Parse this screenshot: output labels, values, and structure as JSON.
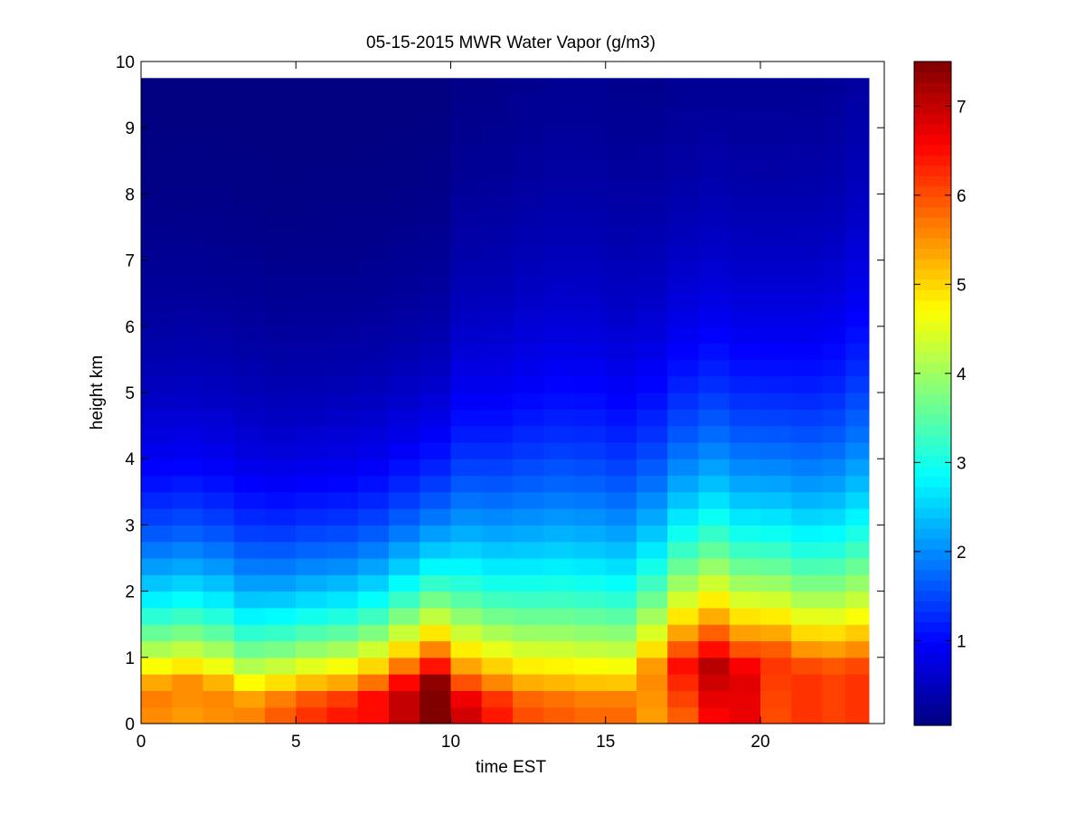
{
  "chart_data": {
    "type": "heatmap",
    "title": "05-15-2015 MWR Water Vapor (g/m3)",
    "xlabel": "time EST",
    "ylabel": "height km",
    "xlim": [
      0,
      24
    ],
    "ylim": [
      0,
      10
    ],
    "x_ticks": [
      0,
      5,
      10,
      15,
      20
    ],
    "y_ticks": [
      0,
      1,
      2,
      3,
      4,
      5,
      6,
      7,
      8,
      9,
      10
    ],
    "colorbar": {
      "colormap": "jet",
      "range": [
        0.05,
        7.5
      ],
      "ticks": [
        1,
        2,
        3,
        4,
        5,
        6,
        7
      ]
    },
    "data_extent": {
      "time_start": 0,
      "time_end": 23.5,
      "height_start": 0,
      "height_end": 9.75
    },
    "grid": false,
    "times": [
      0.5,
      1.5,
      2.5,
      3.5,
      4.5,
      5.5,
      6.5,
      7.5,
      8.5,
      9.5,
      10.5,
      11.5,
      12.5,
      13.5,
      14.5,
      15.5,
      16.5,
      17.5,
      18.5,
      19.5,
      20.5,
      21.5,
      22.5,
      23.0
    ],
    "profiles": [
      {
        "time": 0.5,
        "surface": 5.5,
        "peak": 5.7,
        "peak_height": 0.5,
        "scale_height": 1.9
      },
      {
        "time": 1.5,
        "surface": 5.4,
        "peak": 5.6,
        "peak_height": 0.6,
        "scale_height": 1.9
      },
      {
        "time": 2.5,
        "surface": 5.5,
        "peak": 5.6,
        "peak_height": 0.5,
        "scale_height": 1.9
      },
      {
        "time": 3.5,
        "surface": 5.6,
        "peak": 5.6,
        "peak_height": 0.3,
        "scale_height": 1.9
      },
      {
        "time": 4.5,
        "surface": 5.9,
        "peak": 5.9,
        "peak_height": 0.3,
        "scale_height": 1.8
      },
      {
        "time": 5.5,
        "surface": 6.2,
        "peak": 6.2,
        "peak_height": 0.3,
        "scale_height": 1.8
      },
      {
        "time": 6.5,
        "surface": 6.4,
        "peak": 6.4,
        "peak_height": 0.3,
        "scale_height": 1.8
      },
      {
        "time": 7.5,
        "surface": 6.5,
        "peak": 6.5,
        "peak_height": 0.4,
        "scale_height": 1.8
      },
      {
        "time": 8.5,
        "surface": 7.0,
        "peak": 7.0,
        "peak_height": 0.5,
        "scale_height": 1.8
      },
      {
        "time": 9.5,
        "surface": 7.5,
        "peak": 7.5,
        "peak_height": 0.6,
        "scale_height": 1.8
      },
      {
        "time": 10.5,
        "surface": 6.9,
        "peak": 6.9,
        "peak_height": 0.3,
        "scale_height": 2.3
      },
      {
        "time": 11.5,
        "surface": 6.4,
        "peak": 6.4,
        "peak_height": 0.3,
        "scale_height": 2.4
      },
      {
        "time": 12.5,
        "surface": 6.0,
        "peak": 6.0,
        "peak_height": 0.3,
        "scale_height": 2.6
      },
      {
        "time": 13.5,
        "surface": 5.9,
        "peak": 5.9,
        "peak_height": 0.3,
        "scale_height": 2.7
      },
      {
        "time": 14.5,
        "surface": 5.8,
        "peak": 5.8,
        "peak_height": 0.3,
        "scale_height": 2.7
      },
      {
        "time": 15.5,
        "surface": 5.8,
        "peak": 5.8,
        "peak_height": 0.3,
        "scale_height": 2.6
      },
      {
        "time": 16.5,
        "surface": 5.4,
        "peak": 5.6,
        "peak_height": 0.8,
        "scale_height": 2.5
      },
      {
        "time": 17.5,
        "surface": 5.8,
        "peak": 6.5,
        "peak_height": 0.9,
        "scale_height": 2.5
      },
      {
        "time": 18.5,
        "surface": 6.5,
        "peak": 7.1,
        "peak_height": 0.9,
        "scale_height": 2.5
      },
      {
        "time": 19.5,
        "surface": 6.7,
        "peak": 6.8,
        "peak_height": 0.8,
        "scale_height": 2.5
      },
      {
        "time": 20.5,
        "surface": 6.0,
        "peak": 6.2,
        "peak_height": 1.0,
        "scale_height": 2.5
      },
      {
        "time": 21.5,
        "surface": 6.2,
        "peak": 6.2,
        "peak_height": 0.8,
        "scale_height": 2.6
      },
      {
        "time": 22.5,
        "surface": 6.1,
        "peak": 6.1,
        "peak_height": 0.8,
        "scale_height": 2.7
      },
      {
        "time": 23.0,
        "surface": 6.2,
        "peak": 6.2,
        "peak_height": 0.8,
        "scale_height": 2.9
      }
    ]
  }
}
